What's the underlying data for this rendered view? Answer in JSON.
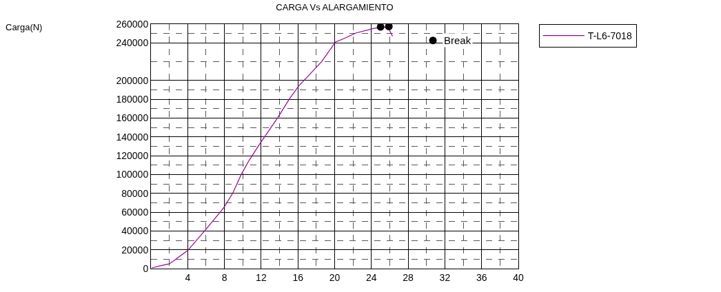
{
  "chart_data": {
    "type": "line",
    "title": "CARGA Vs ALARGAMIENTO",
    "xlim": [
      0,
      40
    ],
    "xticks": [
      4,
      8,
      12,
      16,
      20,
      24,
      28,
      32,
      36,
      40
    ],
    "ylim": [
      0,
      260000
    ],
    "yticks": [
      0,
      20000,
      40000,
      60000,
      80000,
      100000,
      120000,
      140000,
      160000,
      180000,
      200000,
      240000,
      260000
    ],
    "grid": true,
    "legend": "top right",
    "line_style": "solid",
    "marker": "none",
    "series": [
      {
        "name": "T-L6-7018",
        "color": "#990099",
        "x": [
          0.1,
          1.2,
          2.0,
          4.0,
          5.9,
          7.9,
          8.9,
          9.8,
          10.7,
          11.9,
          13.8,
          15.1,
          16.1,
          17.1,
          18.6,
          20.1,
          21.1,
          22.3,
          24.3,
          25.6,
          25.9,
          26.3
        ],
        "values": [
          700,
          3400,
          5000,
          19200,
          40700,
          64400,
          80200,
          99500,
          115300,
          133400,
          160500,
          180800,
          194400,
          204600,
          220400,
          241000,
          245000,
          250500,
          255500,
          256800,
          255000,
          247100
        ]
      },
      {
        "type": "scatter",
        "color": "#000000",
        "marker": "circle",
        "x": [
          25.0,
          25.9,
          30.7
        ],
        "values": [
          257000,
          257500,
          242600
        ]
      }
    ],
    "annotations": [
      {
        "text": "Break",
        "x": 30.7,
        "y": 242600
      },
      "Carga(N)"
    ]
  }
}
